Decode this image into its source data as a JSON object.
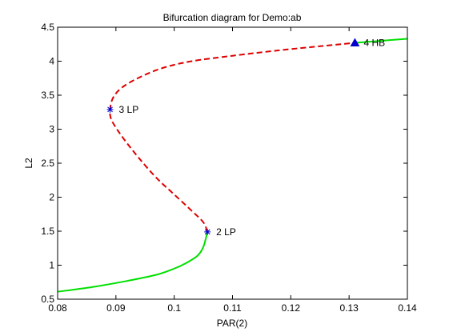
{
  "chart_data": {
    "type": "line",
    "title": "Bifurcation diagram for Demo:ab",
    "xlabel": "PAR(2)",
    "ylabel": "L2",
    "xlim": [
      0.08,
      0.14
    ],
    "ylim": [
      0.5,
      4.5
    ],
    "xticks": [
      "0.08",
      "0.09",
      "0.1",
      "0.11",
      "0.12",
      "0.13",
      "0.14"
    ],
    "yticks": [
      "0.5",
      "1",
      "1.5",
      "2",
      "2.5",
      "3",
      "3.5",
      "4",
      "4.5"
    ],
    "grid": false,
    "colors": {
      "stable": "#00e000",
      "unstable": "#dd0000",
      "marker": "#0000cc"
    },
    "series": [
      {
        "style": "stable",
        "x": [
          0.08,
          0.086,
          0.092,
          0.097,
          0.1,
          0.102,
          0.104,
          0.105,
          0.1057
        ],
        "y": [
          0.61,
          0.68,
          0.77,
          0.86,
          0.95,
          1.03,
          1.14,
          1.27,
          1.49
        ]
      },
      {
        "style": "unstable",
        "x": [
          0.1057,
          0.105,
          0.103,
          0.1,
          0.097,
          0.094,
          0.0915,
          0.0898,
          0.0891,
          0.089,
          0.0895,
          0.091,
          0.094,
          0.098,
          0.103,
          0.11,
          0.118,
          0.125,
          0.131
        ],
        "y": [
          1.49,
          1.63,
          1.8,
          2.04,
          2.28,
          2.57,
          2.84,
          3.05,
          3.17,
          3.29,
          3.46,
          3.61,
          3.76,
          3.9,
          4.0,
          4.08,
          4.16,
          4.22,
          4.27
        ]
      },
      {
        "style": "stable",
        "x": [
          0.131,
          0.134,
          0.137,
          0.14
        ],
        "y": [
          4.27,
          4.29,
          4.31,
          4.33
        ]
      }
    ],
    "points": [
      {
        "label": "2  LP",
        "x": 0.1057,
        "y": 1.49,
        "marker": "star"
      },
      {
        "label": "3  LP",
        "x": 0.089,
        "y": 3.29,
        "marker": "star"
      },
      {
        "label": "4  HB",
        "x": 0.131,
        "y": 4.27,
        "marker": "triangle"
      }
    ]
  }
}
